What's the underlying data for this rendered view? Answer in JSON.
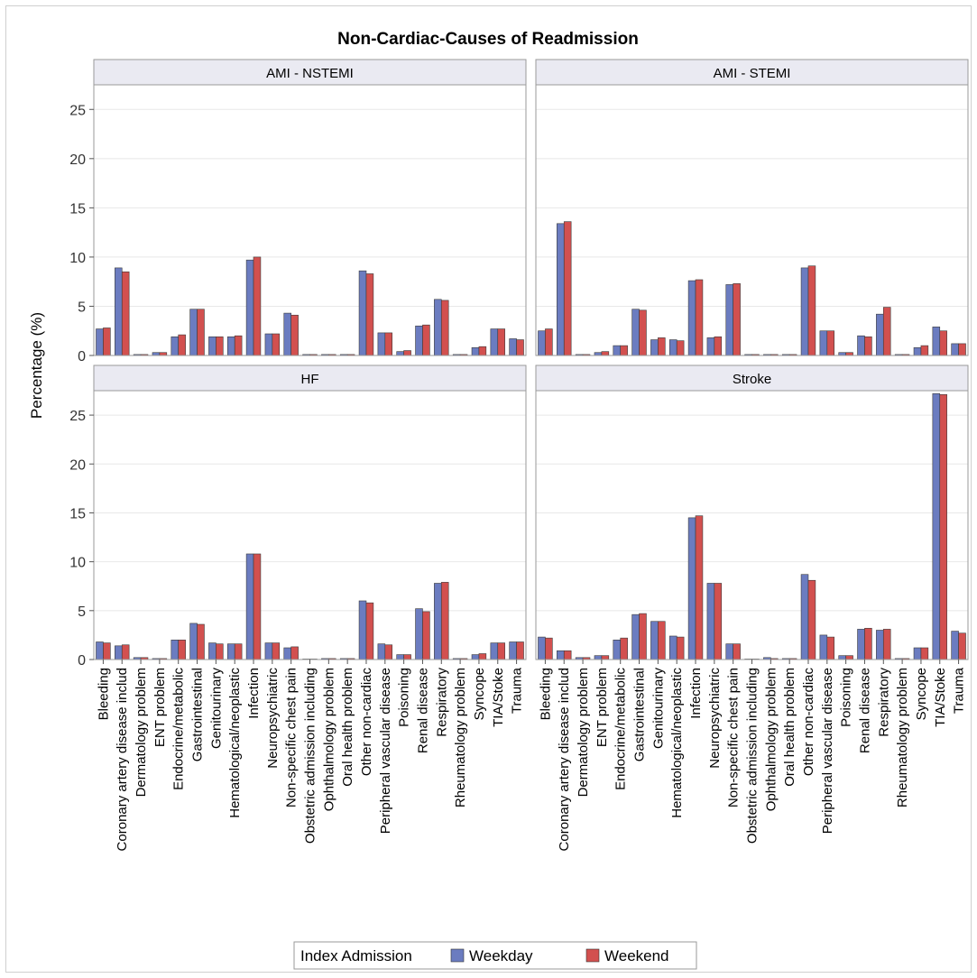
{
  "chart_data": {
    "type": "bar",
    "title": "Non-Cardiac-Causes of Readmission",
    "ylabel": "Percentage (%)",
    "ylim": [
      0,
      27.5
    ],
    "yticks": [
      0,
      5,
      10,
      15,
      20,
      25
    ],
    "grid": true,
    "legend": {
      "placement": "bottom",
      "title": "Index Admission",
      "entries": [
        {
          "name": "Weekday",
          "color": "#6b7cc0"
        },
        {
          "name": "Weekend",
          "color": "#d2504f"
        }
      ]
    },
    "categories": [
      "Bleeding",
      "Coronary artery disease includ",
      "Dermatology problem",
      "ENT problem",
      "Endocrine/metabolic",
      "Gastrointestinal",
      "Genitourinary",
      "Hematological/neoplastic",
      "Infection",
      "Neuropsychiatric",
      "Non-specific chest pain",
      "Obstetric admission including",
      "Ophthalmology problem",
      "Oral health problem",
      "Other non-cardiac",
      "Peripheral vascular disease",
      "Poisoning",
      "Renal disease",
      "Respiratory",
      "Rheumatology problem",
      "Syncope",
      "TIA/Stoke",
      "Trauma"
    ],
    "panels": [
      {
        "name": "AMI - NSTEMI",
        "series": [
          {
            "name": "Weekday",
            "values": [
              2.7,
              8.9,
              0.1,
              0.3,
              1.9,
              4.7,
              1.9,
              1.9,
              9.7,
              2.2,
              4.3,
              0.1,
              0.1,
              0.1,
              8.6,
              2.3,
              0.4,
              3.0,
              5.7,
              0.1,
              0.8,
              2.7,
              1.7
            ]
          },
          {
            "name": "Weekend",
            "values": [
              2.8,
              8.5,
              0.1,
              0.3,
              2.1,
              4.7,
              1.9,
              2.0,
              10.0,
              2.2,
              4.1,
              0.1,
              0.1,
              0.1,
              8.3,
              2.3,
              0.5,
              3.1,
              5.6,
              0.1,
              0.9,
              2.7,
              1.6
            ]
          }
        ]
      },
      {
        "name": "AMI - STEMI",
        "series": [
          {
            "name": "Weekday",
            "values": [
              2.5,
              13.4,
              0.1,
              0.3,
              1.0,
              4.7,
              1.6,
              1.6,
              7.6,
              1.8,
              7.2,
              0.1,
              0.1,
              0.1,
              8.9,
              2.5,
              0.3,
              2.0,
              4.2,
              0.1,
              0.8,
              2.9,
              1.2
            ]
          },
          {
            "name": "Weekend",
            "values": [
              2.7,
              13.6,
              0.1,
              0.4,
              1.0,
              4.6,
              1.8,
              1.5,
              7.7,
              1.9,
              7.3,
              0.1,
              0.1,
              0.1,
              9.1,
              2.5,
              0.3,
              1.9,
              4.9,
              0.1,
              1.0,
              2.5,
              1.2
            ]
          }
        ]
      },
      {
        "name": "HF",
        "series": [
          {
            "name": "Weekday",
            "values": [
              1.8,
              1.4,
              0.2,
              0.1,
              2.0,
              3.7,
              1.7,
              1.6,
              10.8,
              1.7,
              1.2,
              0.05,
              0.1,
              0.1,
              6.0,
              1.6,
              0.5,
              5.2,
              7.8,
              0.1,
              0.5,
              1.7,
              1.8
            ]
          },
          {
            "name": "Weekend",
            "values": [
              1.7,
              1.5,
              0.2,
              0.1,
              2.0,
              3.6,
              1.6,
              1.6,
              10.8,
              1.7,
              1.3,
              0.05,
              0.1,
              0.1,
              5.8,
              1.5,
              0.5,
              4.9,
              7.9,
              0.1,
              0.6,
              1.7,
              1.8
            ]
          }
        ]
      },
      {
        "name": "Stroke",
        "series": [
          {
            "name": "Weekday",
            "values": [
              2.3,
              0.9,
              0.2,
              0.4,
              2.0,
              4.6,
              3.9,
              2.4,
              14.5,
              7.8,
              1.6,
              0.05,
              0.2,
              0.1,
              8.7,
              2.5,
              0.4,
              3.1,
              3.0,
              0.1,
              1.2,
              27.2,
              2.9
            ]
          },
          {
            "name": "Weekend",
            "values": [
              2.2,
              0.9,
              0.2,
              0.4,
              2.2,
              4.7,
              3.9,
              2.3,
              14.7,
              7.8,
              1.6,
              0.05,
              0.1,
              0.1,
              8.1,
              2.3,
              0.4,
              3.2,
              3.1,
              0.1,
              1.2,
              27.1,
              2.7
            ]
          }
        ]
      }
    ]
  }
}
